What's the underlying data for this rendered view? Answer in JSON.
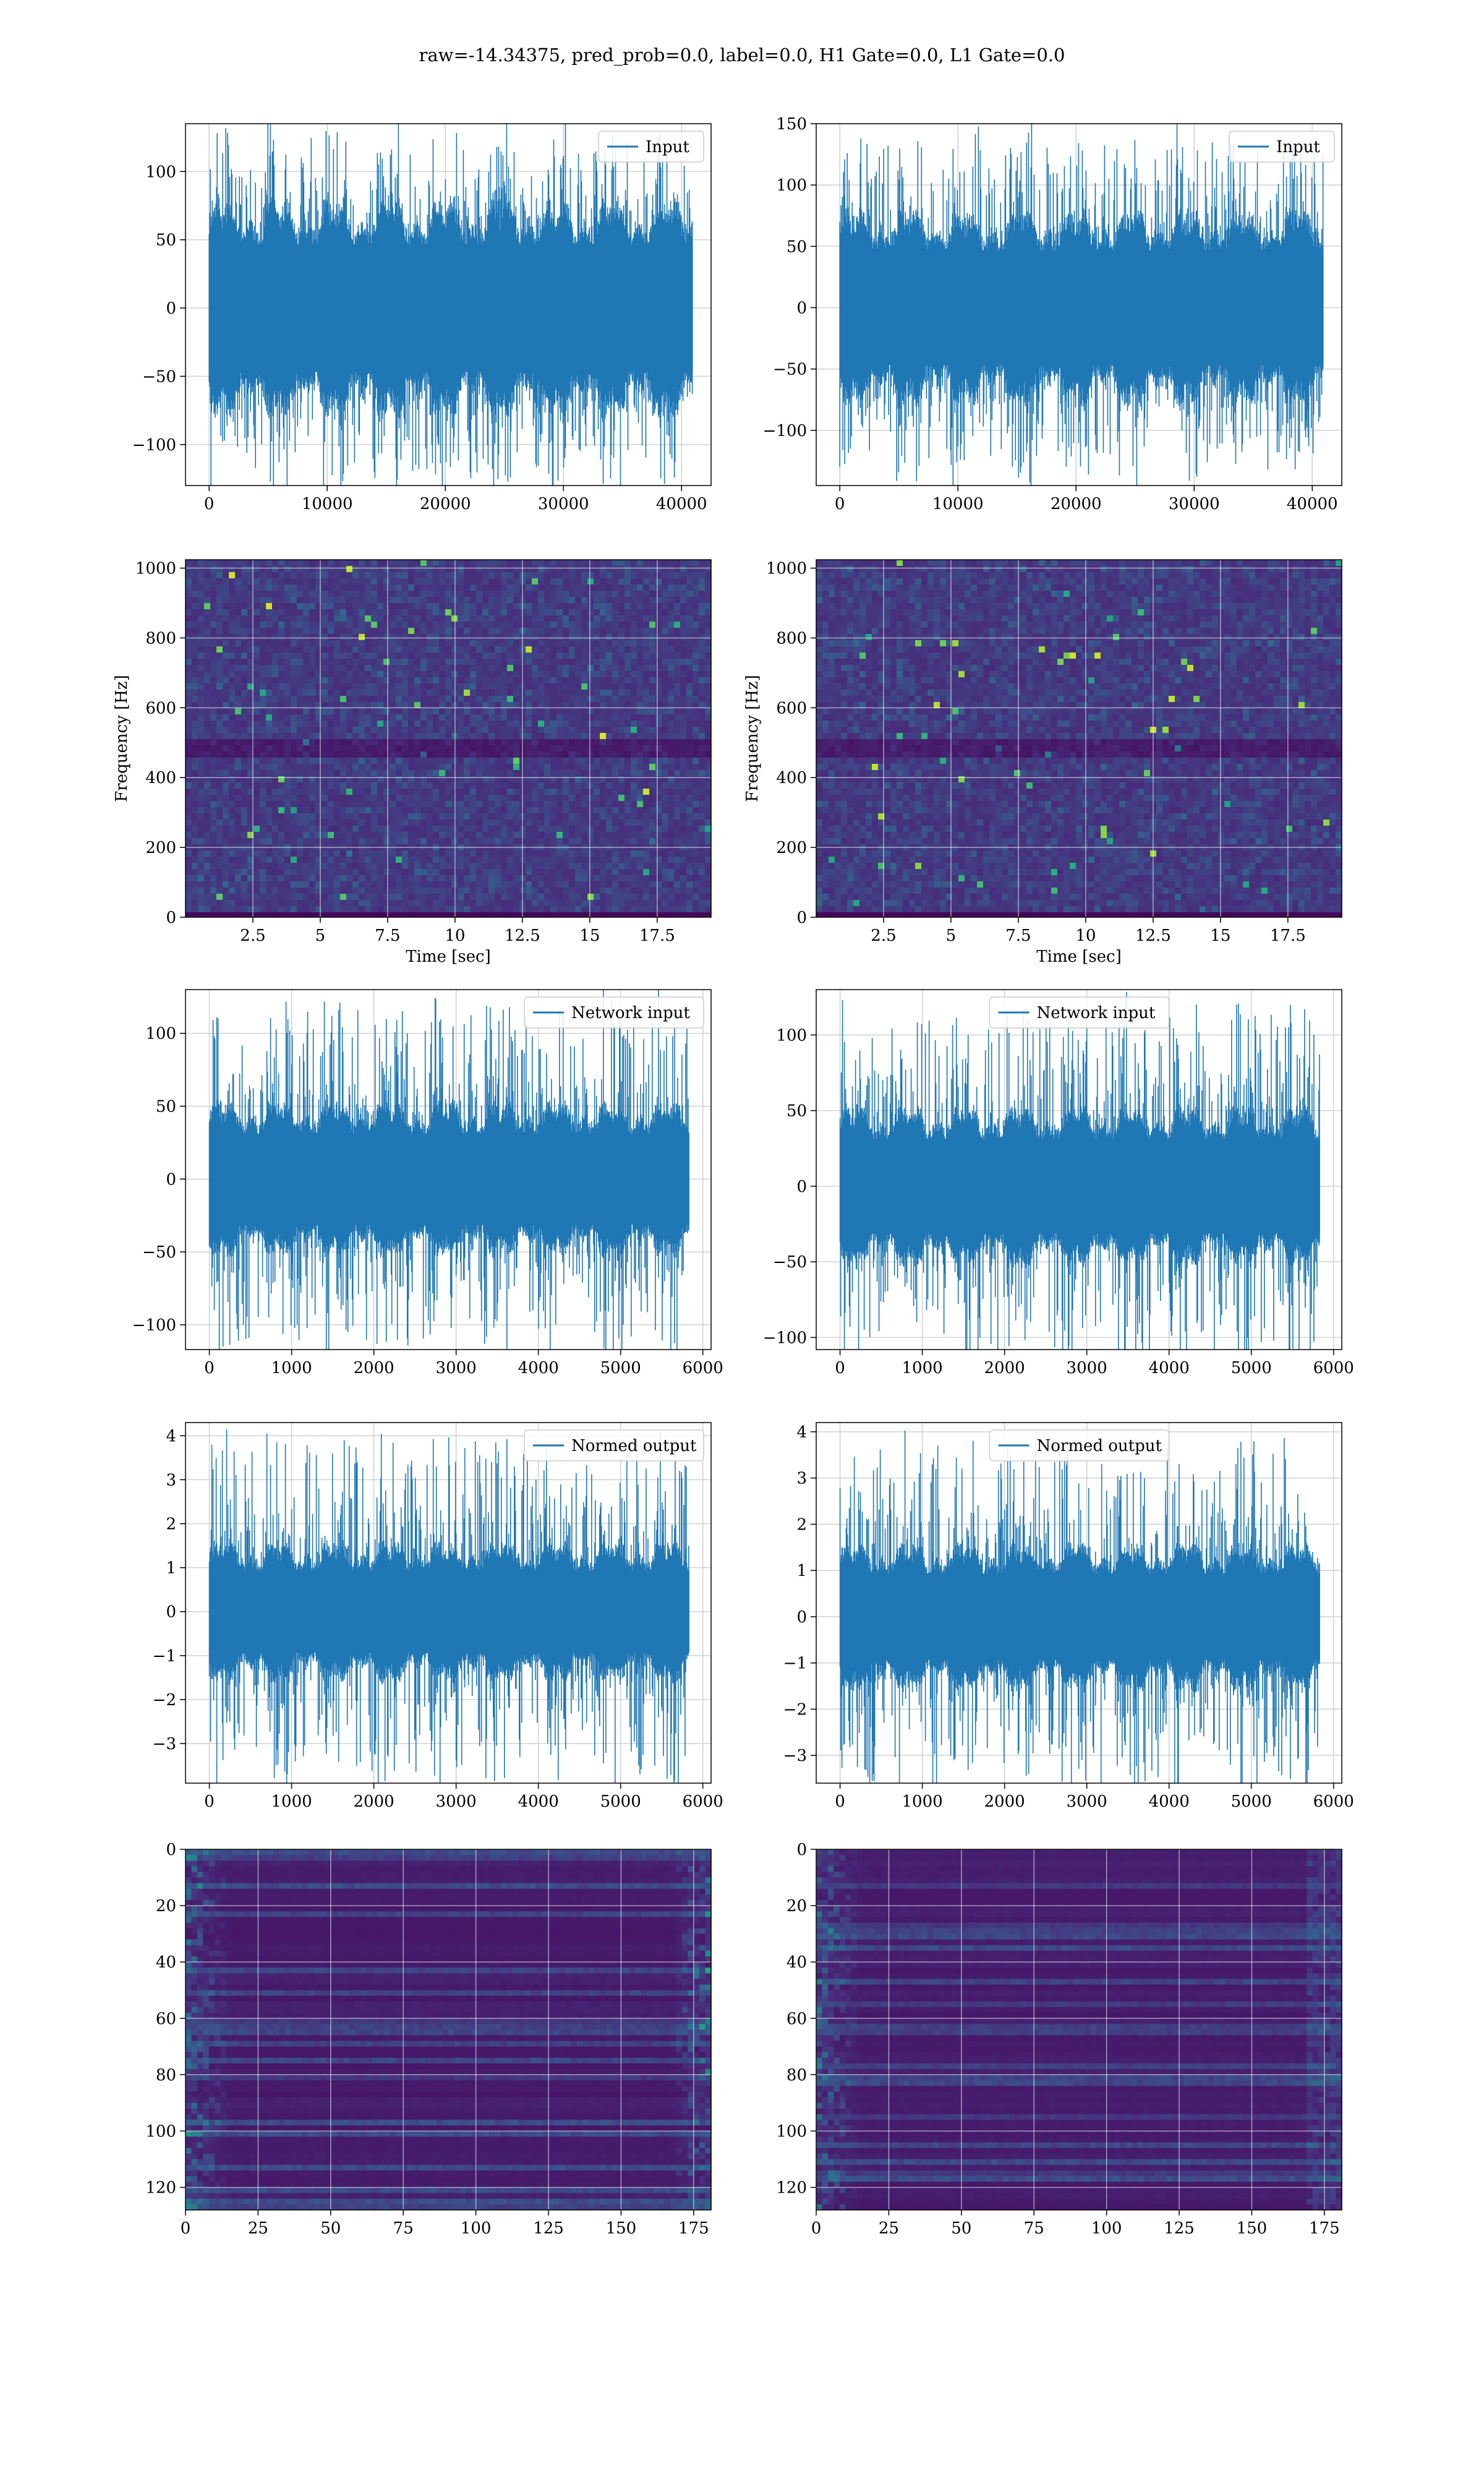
{
  "figure_title": "raw=-14.34375, pred_prob=0.0, label=0.0, H1 Gate=0.0, L1 Gate=0.0",
  "colors": {
    "line": "#1f77b4",
    "grid": "#d0d0d0",
    "viridis": [
      "#440154",
      "#472d7b",
      "#3b528b",
      "#2c728e",
      "#21918c",
      "#28ae80",
      "#5ec962",
      "#addc30",
      "#fde725"
    ]
  },
  "chart_data": [
    {
      "id": "input-h1",
      "type": "line",
      "legend": "Input",
      "legend_loc": "upper right",
      "xlim": [
        -2000,
        42500
      ],
      "ylim": [
        -130,
        135
      ],
      "xticks": [
        0,
        10000,
        20000,
        30000,
        40000
      ],
      "yticks": [
        -100,
        -50,
        0,
        50,
        100
      ],
      "n_samples": 40960,
      "amplitude_core": 60,
      "amplitude_peak": 127,
      "grid": true
    },
    {
      "id": "input-l1",
      "type": "line",
      "legend": "Input",
      "legend_loc": "upper right",
      "xlim": [
        -2000,
        42500
      ],
      "ylim": [
        -145,
        150
      ],
      "xticks": [
        0,
        10000,
        20000,
        30000,
        40000
      ],
      "yticks": [
        -100,
        -50,
        0,
        50,
        100,
        150
      ],
      "n_samples": 40960,
      "amplitude_core": 60,
      "amplitude_peak": 138,
      "grid": true
    },
    {
      "id": "spectrogram-h1",
      "type": "heatmap",
      "colormap": "viridis",
      "xlabel": "Time [sec]",
      "ylabel": "Frequency [Hz]",
      "xlim": [
        0,
        19.5
      ],
      "ylim": [
        0,
        1024
      ],
      "xticks": [
        2.5,
        5.0,
        7.5,
        10.0,
        12.5,
        15.0,
        17.5
      ],
      "yticks": [
        0,
        200,
        400,
        600,
        800,
        1000
      ],
      "note_band_hz": 500,
      "grid": true
    },
    {
      "id": "spectrogram-l1",
      "type": "heatmap",
      "colormap": "viridis",
      "xlabel": "Time [sec]",
      "ylabel": "Frequency [Hz]",
      "xlim": [
        0,
        19.5
      ],
      "ylim": [
        0,
        1024
      ],
      "xticks": [
        2.5,
        5.0,
        7.5,
        10.0,
        12.5,
        15.0,
        17.5
      ],
      "yticks": [
        0,
        200,
        400,
        600,
        800,
        1000
      ],
      "note_band_hz": 500,
      "grid": true
    },
    {
      "id": "network-input-h1",
      "type": "line",
      "legend": "Network input",
      "legend_loc": "upper right",
      "xlim": [
        -290,
        6100
      ],
      "ylim": [
        -117,
        130
      ],
      "xticks": [
        0,
        1000,
        2000,
        3000,
        4000,
        5000,
        6000
      ],
      "yticks": [
        -100,
        -50,
        0,
        50,
        100
      ],
      "n_samples": 5836,
      "amplitude_core": 40,
      "amplitude_peak": 120,
      "grid": true
    },
    {
      "id": "network-input-l1",
      "type": "line",
      "legend": "Network input",
      "legend_loc": "upper left",
      "xlim": [
        -290,
        6100
      ],
      "ylim": [
        -108,
        130
      ],
      "xticks": [
        0,
        1000,
        2000,
        3000,
        4000,
        5000,
        6000
      ],
      "yticks": [
        -100,
        -50,
        0,
        50,
        100
      ],
      "n_samples": 5836,
      "amplitude_core": 40,
      "amplitude_peak": 118,
      "grid": true
    },
    {
      "id": "normed-output-h1",
      "type": "line",
      "legend": "Normed output",
      "legend_loc": "upper right",
      "xlim": [
        -290,
        6100
      ],
      "ylim": [
        -3.9,
        4.3
      ],
      "xticks": [
        0,
        1000,
        2000,
        3000,
        4000,
        5000,
        6000
      ],
      "yticks": [
        -3,
        -2,
        -1,
        0,
        1,
        2,
        3,
        4
      ],
      "n_samples": 5836,
      "amplitude_core": 1.2,
      "amplitude_peak": 3.9,
      "grid": true
    },
    {
      "id": "normed-output-l1",
      "type": "line",
      "legend": "Normed output",
      "legend_loc": "upper left",
      "xlim": [
        -290,
        6100
      ],
      "ylim": [
        -3.6,
        4.2
      ],
      "xticks": [
        0,
        1000,
        2000,
        3000,
        4000,
        5000,
        6000
      ],
      "yticks": [
        -3,
        -2,
        -1,
        0,
        1,
        2,
        3,
        4
      ],
      "n_samples": 5836,
      "amplitude_core": 1.2,
      "amplitude_peak": 3.8,
      "grid": true
    },
    {
      "id": "feature-map-h1",
      "type": "heatmap",
      "colormap": "viridis",
      "xlim": [
        0,
        181
      ],
      "ylim": [
        128,
        0
      ],
      "xticks": [
        0,
        25,
        50,
        75,
        100,
        125,
        150,
        175
      ],
      "yticks": [
        0,
        20,
        40,
        60,
        80,
        100,
        120
      ],
      "rows": 128,
      "cols": 181,
      "grid": true
    },
    {
      "id": "feature-map-l1",
      "type": "heatmap",
      "colormap": "viridis",
      "xlim": [
        0,
        181
      ],
      "ylim": [
        128,
        0
      ],
      "xticks": [
        0,
        25,
        50,
        75,
        100,
        125,
        150,
        175
      ],
      "yticks": [
        0,
        20,
        40,
        60,
        80,
        100,
        120
      ],
      "rows": 128,
      "cols": 181,
      "grid": true
    }
  ]
}
